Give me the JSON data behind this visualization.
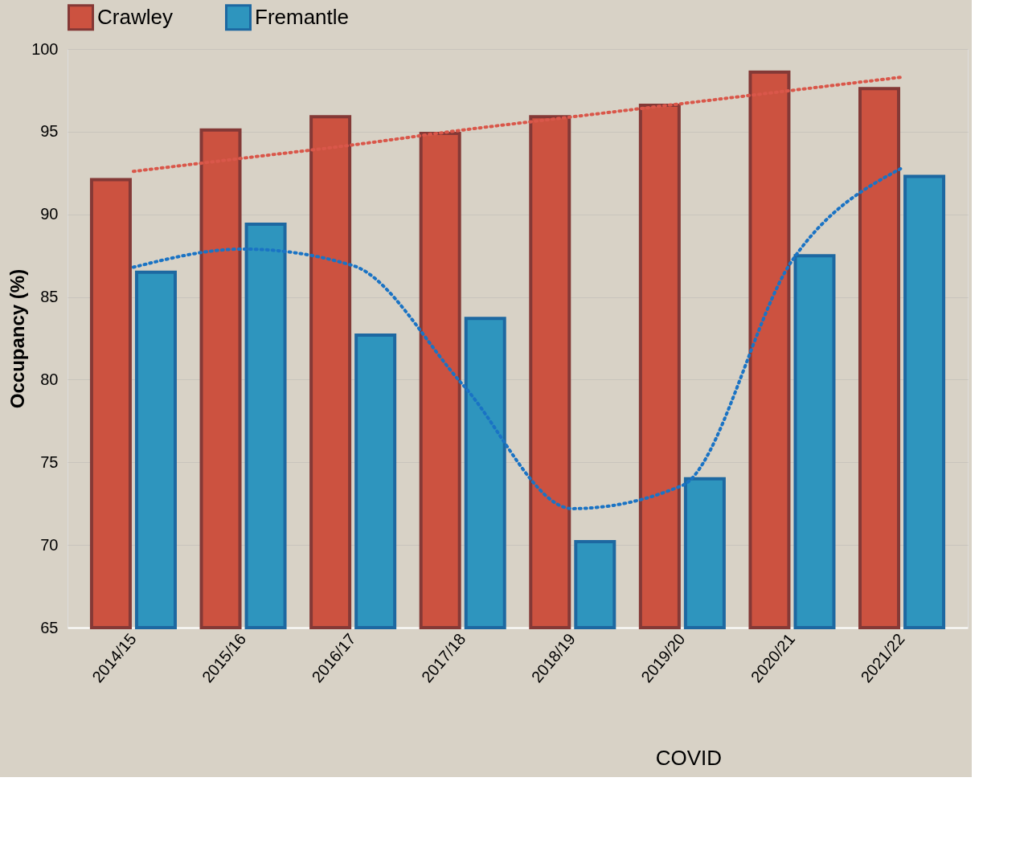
{
  "chart_data": {
    "type": "bar",
    "ylabel": "Occupancy (%)",
    "categories": [
      "2014/15",
      "2015/16",
      "2016/17",
      "2017/18",
      "2018/19",
      "2019/20",
      "2020/21",
      "2021/22"
    ],
    "series": [
      {
        "name": "Crawley",
        "color": "#cc5240",
        "values": [
          92.1,
          95.1,
          95.9,
          94.9,
          95.9,
          96.6,
          98.6,
          97.6
        ]
      },
      {
        "name": "Fremantle",
        "color": "#2e95be",
        "values": [
          86.5,
          89.4,
          82.7,
          83.7,
          70.2,
          74.0,
          87.5,
          92.3
        ]
      },
      {
        "type": "line",
        "color": "#d9574a",
        "line_style": "dotted",
        "values": [
          92.6,
          93.4,
          94.2,
          95.1,
          95.9,
          96.7,
          97.5,
          98.3
        ]
      },
      {
        "type": "line",
        "color": "#1a73c4",
        "line_style": "dotted",
        "values": [
          86.8,
          87.9,
          86.9,
          79.7,
          72.2,
          73.6,
          87.2,
          92.8
        ]
      }
    ],
    "ylim": [
      65,
      100
    ],
    "yticks": [
      65,
      70,
      75,
      80,
      85,
      90,
      95,
      100
    ],
    "grid": "y",
    "legend": "top",
    "annotations": [
      "COVID"
    ]
  }
}
